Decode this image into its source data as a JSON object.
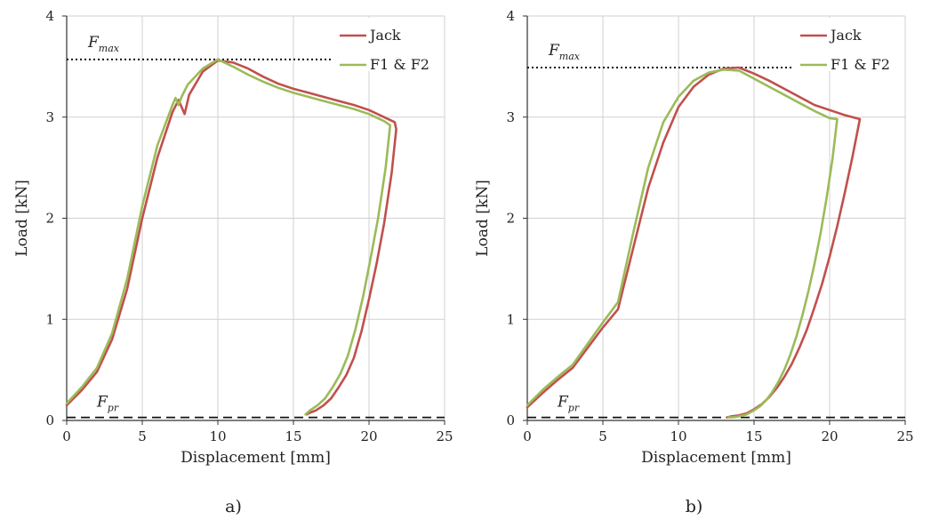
{
  "chart_data": [
    {
      "type": "line",
      "caption": "a)",
      "xlabel": "Displacement [mm]",
      "ylabel": "Load [kN]",
      "xlim": [
        0,
        25
      ],
      "ylim": [
        0,
        4
      ],
      "xticks": [
        0,
        5,
        10,
        15,
        20,
        25
      ],
      "yticks": [
        0,
        1,
        2,
        3,
        4
      ],
      "grid": true,
      "legend_position": "top-right",
      "reference_lines": [
        {
          "name": "F_max",
          "label_main": "F",
          "label_sub": "max",
          "y": 3.57,
          "style": "dotted"
        },
        {
          "name": "F_pr",
          "label_main": "F",
          "label_sub": "pr",
          "y": 0.03,
          "style": "dashed"
        }
      ],
      "series": [
        {
          "name": "Jack",
          "color": "#c0504d",
          "x": [
            0,
            1,
            2,
            3,
            4,
            5,
            6,
            7,
            7.4,
            7.6,
            7.8,
            8.1,
            9,
            10,
            11,
            12,
            13,
            14,
            15,
            16,
            17,
            18,
            19,
            20,
            21,
            21.7,
            21.8,
            21.5,
            21,
            20.5,
            20,
            19.5,
            19,
            18.5,
            18,
            17.5,
            17,
            16.5,
            16,
            15.9
          ],
          "y": [
            0.15,
            0.3,
            0.48,
            0.8,
            1.3,
            2.0,
            2.6,
            3.05,
            3.17,
            3.1,
            3.03,
            3.22,
            3.45,
            3.56,
            3.54,
            3.48,
            3.4,
            3.33,
            3.28,
            3.24,
            3.2,
            3.16,
            3.12,
            3.07,
            3.0,
            2.95,
            2.88,
            2.45,
            1.95,
            1.55,
            1.2,
            0.88,
            0.62,
            0.45,
            0.33,
            0.22,
            0.15,
            0.1,
            0.07,
            0.06
          ]
        },
        {
          "name": "F1 & F2",
          "color": "#9bbb59",
          "x": [
            0,
            1,
            2,
            3,
            4,
            5,
            6,
            7,
            7.2,
            7.4,
            7.6,
            8,
            9,
            10,
            11,
            12,
            13,
            14,
            15,
            16,
            17,
            18,
            19,
            20,
            21,
            21.4,
            21.1,
            20.6,
            20.1,
            19.6,
            19.1,
            18.6,
            18.1,
            17.6,
            17.1,
            16.6,
            16.1,
            15.8
          ],
          "y": [
            0.17,
            0.33,
            0.52,
            0.86,
            1.4,
            2.12,
            2.72,
            3.12,
            3.19,
            3.12,
            3.2,
            3.32,
            3.48,
            3.57,
            3.5,
            3.42,
            3.35,
            3.29,
            3.24,
            3.2,
            3.16,
            3.12,
            3.08,
            3.03,
            2.96,
            2.92,
            2.5,
            2.0,
            1.6,
            1.22,
            0.9,
            0.64,
            0.46,
            0.33,
            0.22,
            0.15,
            0.1,
            0.06
          ]
        }
      ]
    },
    {
      "type": "line",
      "caption": "b)",
      "xlabel": "Displacement [mm]",
      "ylabel": "Load [kN]",
      "xlim": [
        0,
        25
      ],
      "ylim": [
        0,
        4
      ],
      "xticks": [
        0,
        5,
        10,
        15,
        20,
        25
      ],
      "yticks": [
        0,
        1,
        2,
        3,
        4
      ],
      "grid": true,
      "legend_position": "top-right",
      "reference_lines": [
        {
          "name": "F_max",
          "label_main": "F",
          "label_sub": "max",
          "y": 3.49,
          "style": "dotted"
        },
        {
          "name": "F_pr",
          "label_main": "F",
          "label_sub": "pr",
          "y": 0.03,
          "style": "dashed"
        }
      ],
      "series": [
        {
          "name": "Jack",
          "color": "#c0504d",
          "x": [
            0,
            1,
            2,
            3,
            4,
            5,
            6,
            7,
            8,
            9,
            10,
            11,
            12,
            13,
            14,
            15,
            16,
            17,
            18,
            19,
            20,
            21,
            22,
            21.5,
            21,
            20.5,
            20,
            19.5,
            19,
            18.5,
            18,
            17.5,
            17,
            16.5,
            16,
            15.5,
            15,
            14.5,
            14,
            13.5,
            13.2
          ],
          "y": [
            0.13,
            0.27,
            0.4,
            0.52,
            0.72,
            0.92,
            1.1,
            1.7,
            2.3,
            2.75,
            3.1,
            3.3,
            3.42,
            3.48,
            3.49,
            3.43,
            3.36,
            3.28,
            3.2,
            3.12,
            3.07,
            3.02,
            2.98,
            2.6,
            2.25,
            1.92,
            1.62,
            1.35,
            1.12,
            0.9,
            0.72,
            0.56,
            0.43,
            0.32,
            0.23,
            0.16,
            0.11,
            0.07,
            0.05,
            0.04,
            0.03
          ]
        },
        {
          "name": "F1 & F2",
          "color": "#9bbb59",
          "x": [
            0,
            1,
            2,
            3,
            4,
            5,
            6,
            7,
            8,
            9,
            10,
            11,
            12,
            13,
            14,
            15,
            16,
            17,
            18,
            19,
            20,
            20.5,
            20.2,
            19.8,
            19.4,
            19,
            18.6,
            18.2,
            17.8,
            17.4,
            17,
            16.6,
            16.2,
            15.8,
            15.4,
            15,
            14.5,
            14,
            13.5,
            13.3
          ],
          "y": [
            0.15,
            0.3,
            0.43,
            0.55,
            0.76,
            0.97,
            1.17,
            1.85,
            2.5,
            2.95,
            3.2,
            3.36,
            3.44,
            3.47,
            3.46,
            3.38,
            3.3,
            3.22,
            3.14,
            3.06,
            2.99,
            2.98,
            2.6,
            2.2,
            1.85,
            1.55,
            1.28,
            1.04,
            0.83,
            0.65,
            0.5,
            0.38,
            0.28,
            0.2,
            0.14,
            0.1,
            0.06,
            0.04,
            0.03,
            0.03
          ]
        }
      ]
    }
  ]
}
